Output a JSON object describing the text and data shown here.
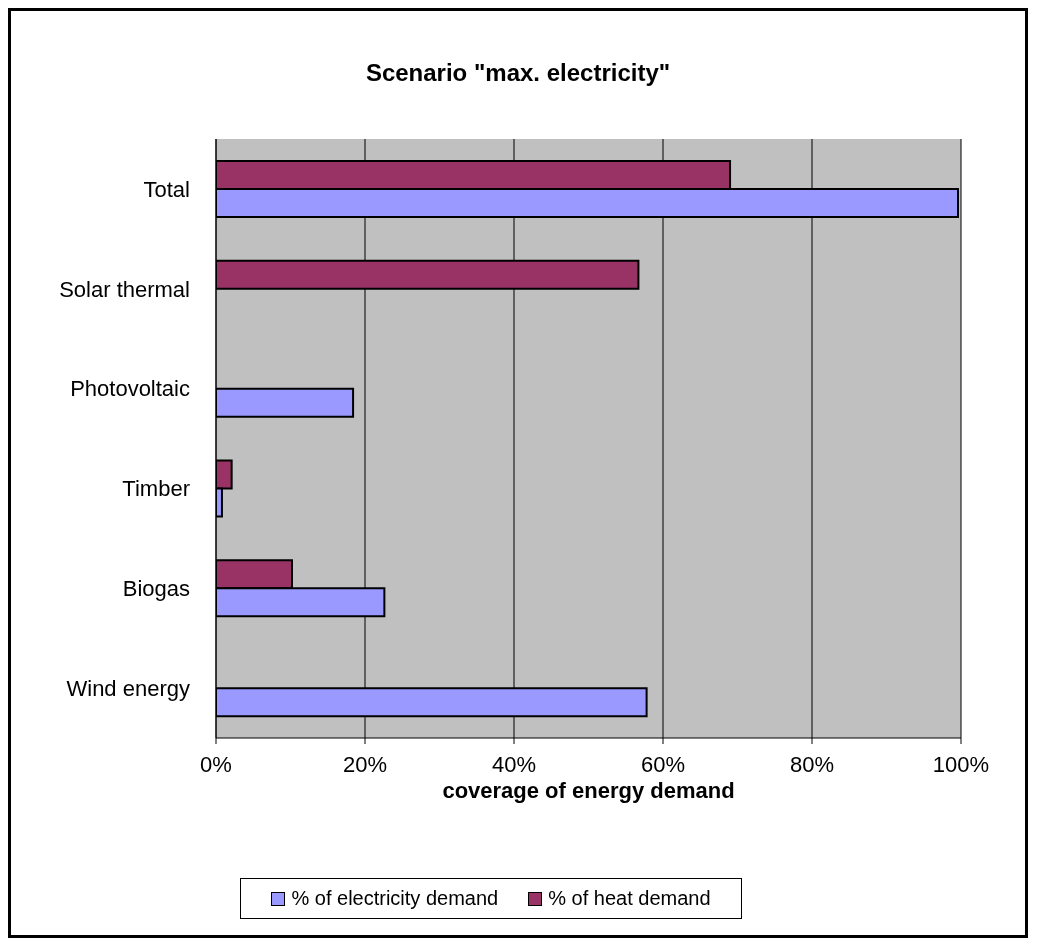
{
  "chart_data": {
    "type": "bar",
    "orientation": "horizontal",
    "title": "Scenario \"max. electricity\"",
    "xlabel": "coverage of energy demand",
    "categories": [
      "Total",
      "Solar thermal",
      "Photovoltaic",
      "Timber",
      "Biogas",
      "Wind energy"
    ],
    "series": [
      {
        "name": "% of heat demand",
        "color": "#993366",
        "values": [
          69,
          56.7,
          null,
          2.1,
          10.2,
          null
        ]
      },
      {
        "name": "% of electricity demand",
        "color": "#9999ff",
        "values": [
          99.6,
          null,
          18.4,
          0.8,
          22.6,
          57.8
        ]
      }
    ],
    "xlim": [
      0,
      100
    ],
    "xticks": [
      {
        "value": 0,
        "label": "0%"
      },
      {
        "value": 20,
        "label": "20%"
      },
      {
        "value": 40,
        "label": "40%"
      },
      {
        "value": 60,
        "label": "60%"
      },
      {
        "value": 80,
        "label": "80%"
      },
      {
        "value": 100,
        "label": "100%"
      }
    ],
    "grid": "x",
    "legend": "bottom"
  }
}
